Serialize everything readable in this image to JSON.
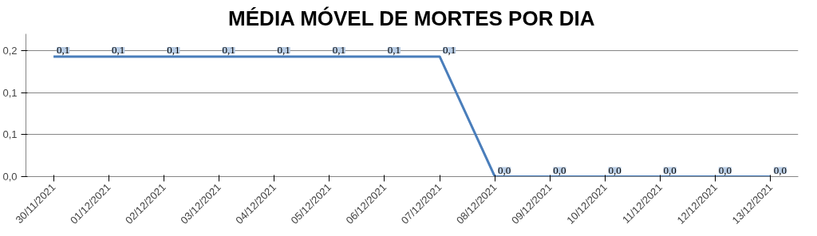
{
  "chart_data": {
    "type": "line",
    "title": "MÉDIA MÓVEL DE MORTES POR DIA",
    "categories": [
      "30/11/2021",
      "01/12/2021",
      "02/12/2021",
      "03/12/2021",
      "04/12/2021",
      "05/12/2021",
      "06/12/2021",
      "07/12/2021",
      "08/12/2021",
      "09/12/2021",
      "10/12/2021",
      "11/12/2021",
      "12/12/2021",
      "13/12/2021"
    ],
    "series": [
      {
        "color": "#4a7ebb",
        "values": [
          0.143,
          0.143,
          0.143,
          0.143,
          0.143,
          0.143,
          0.143,
          0.143,
          0,
          0,
          0,
          0,
          0,
          0
        ],
        "value_labels": [
          "0,1",
          "0,1",
          "0,1",
          "0,1",
          "0,1",
          "0,1",
          "0,1",
          "0,1",
          "0,0",
          "0,0",
          "0,0",
          "0,0",
          "0,0",
          "0,0"
        ]
      }
    ],
    "ylim": [
      0,
      0.17
    ],
    "yticks": [
      {
        "value": 0,
        "label": "0,0"
      },
      {
        "value": 0.05,
        "label": "0,1"
      },
      {
        "value": 0.1,
        "label": "0,1"
      },
      {
        "value": 0.15,
        "label": "0,2"
      }
    ],
    "grid": "y",
    "marker": "none",
    "line_style": "solid"
  }
}
